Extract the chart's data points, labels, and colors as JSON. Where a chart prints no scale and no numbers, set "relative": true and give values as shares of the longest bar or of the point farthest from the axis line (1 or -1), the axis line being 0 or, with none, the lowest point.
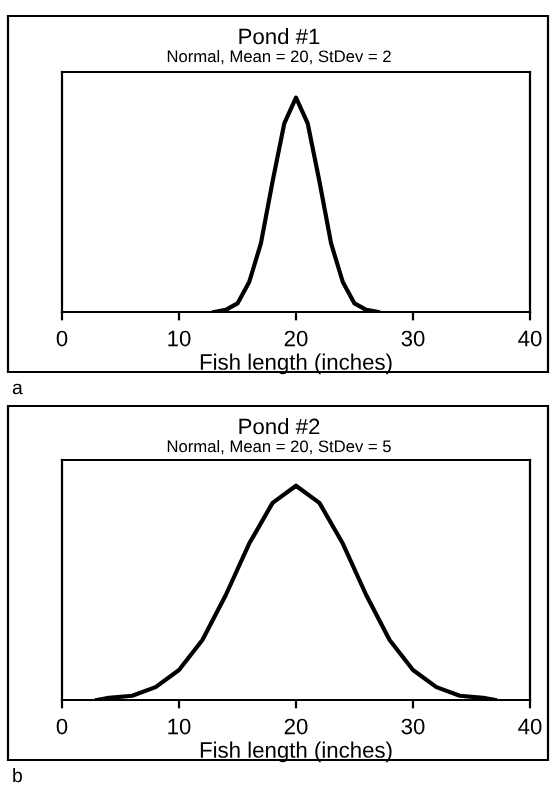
{
  "chart_data": [
    {
      "type": "line",
      "title": "Pond #1",
      "subtitle": "Normal, Mean = 20, StDev = 2",
      "xlabel": "Fish length (inches)",
      "relative": true,
      "xlim": [
        0,
        40
      ],
      "xticks": [
        0,
        10,
        20,
        30,
        40
      ],
      "grid": false,
      "legend": false,
      "marker": "none",
      "line_style": "solid",
      "annotations": [
        "a"
      ],
      "series": [
        {
          "color": "#000000",
          "x": [
            13,
            14,
            15,
            16,
            17,
            18,
            19,
            20,
            21,
            22,
            23,
            24,
            25,
            26,
            27
          ],
          "values": [
            0,
            0.01,
            0.04,
            0.14,
            0.32,
            0.61,
            0.88,
            1,
            0.88,
            0.61,
            0.32,
            0.14,
            0.04,
            0.01,
            0
          ]
        }
      ]
    },
    {
      "type": "line",
      "title": "Pond #2",
      "subtitle": "Normal, Mean = 20, StDev = 5",
      "xlabel": "Fish length (inches)",
      "relative": true,
      "xlim": [
        0,
        40
      ],
      "xticks": [
        0,
        10,
        20,
        30,
        40
      ],
      "grid": false,
      "legend": false,
      "marker": "none",
      "line_style": "solid",
      "annotations": [
        "b"
      ],
      "series": [
        {
          "color": "#000000",
          "x": [
            3,
            4,
            6,
            8,
            10,
            12,
            14,
            16,
            18,
            20,
            22,
            24,
            26,
            28,
            30,
            32,
            34,
            36,
            37
          ],
          "values": [
            0,
            0.01,
            0.02,
            0.06,
            0.14,
            0.28,
            0.49,
            0.73,
            0.92,
            1,
            0.92,
            0.73,
            0.49,
            0.28,
            0.14,
            0.06,
            0.02,
            0.01,
            0
          ]
        }
      ]
    }
  ]
}
